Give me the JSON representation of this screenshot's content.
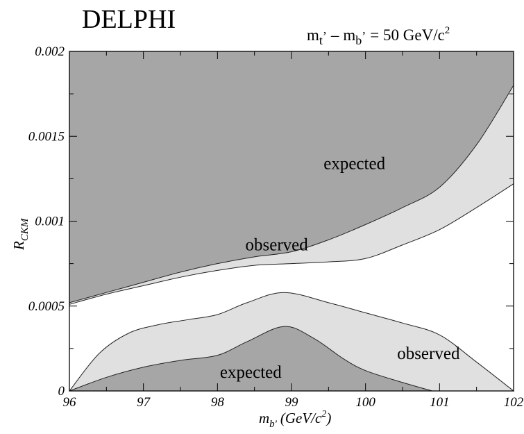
{
  "chart_data": {
    "type": "area",
    "title": "DELPHI",
    "annotation": {
      "m": "m",
      "t": "t",
      "b": "b",
      "prime": "’",
      "minus": "–",
      "rest": "= 50 GeV/c",
      "sup": "2"
    },
    "xlabel": {
      "main": "m",
      "sub": "b'",
      "rest": "(GeV/c",
      "sup": "2",
      "close": ")"
    },
    "ylabel": {
      "main": "R",
      "sub": "CKM"
    },
    "xlim": [
      96,
      102
    ],
    "ylim": [
      0,
      0.002
    ],
    "x_ticks": [
      96,
      97,
      98,
      99,
      100,
      101,
      102
    ],
    "x_tick_labels": [
      "96",
      "97",
      "98",
      "99",
      "100",
      "101",
      "102"
    ],
    "y_ticks": [
      0,
      0.0005,
      0.001,
      0.0015,
      0.002
    ],
    "y_tick_labels": [
      "0",
      "0.0005",
      "0.001",
      "0.0015",
      "0.002"
    ],
    "colors": {
      "expected": "#a6a6a6",
      "observed": "#e0e0e0",
      "allowed": "#ffffff"
    },
    "upper_expected_boundary": {
      "x": [
        96,
        96.5,
        97,
        97.5,
        98,
        98.5,
        99,
        99.5,
        100,
        100.5,
        101,
        101.5,
        102
      ],
      "values": [
        0.00052,
        0.00058,
        0.00064,
        0.0007,
        0.00075,
        0.00079,
        0.00082,
        0.00089,
        0.00098,
        0.00108,
        0.0012,
        0.00145,
        0.0018
      ]
    },
    "upper_observed_boundary": {
      "x": [
        96,
        96.5,
        97,
        97.5,
        98,
        98.5,
        99,
        99.5,
        100,
        100.5,
        101,
        101.5,
        102
      ],
      "values": [
        0.00051,
        0.00057,
        0.00062,
        0.00067,
        0.00071,
        0.00074,
        0.00075,
        0.00076,
        0.00078,
        0.00086,
        0.00095,
        0.00108,
        0.00122
      ]
    },
    "lower_observed_boundary": {
      "x": [
        96,
        96.4,
        96.8,
        97.2,
        97.6,
        98,
        98.4,
        98.9,
        99.5,
        100,
        100.5,
        101,
        101.5,
        102
      ],
      "values": [
        0,
        0.00022,
        0.00034,
        0.00039,
        0.00042,
        0.00045,
        0.00052,
        0.00058,
        0.00052,
        0.00046,
        0.0004,
        0.00033,
        0.00017,
        0
      ]
    },
    "lower_expected_boundary": {
      "x": [
        96,
        96.5,
        97,
        97.5,
        98,
        98.4,
        98.9,
        99.3,
        99.7,
        100,
        100.5,
        100.9
      ],
      "values": [
        0,
        8e-05,
        0.00014,
        0.00018,
        0.00021,
        0.00029,
        0.00038,
        0.00031,
        0.00019,
        0.00012,
        5e-05,
        0
      ]
    },
    "region_labels": [
      {
        "text": "expected",
        "x": 99.85,
        "y": 0.00134
      },
      {
        "text": "observed",
        "x": 98.8,
        "y": 0.00086
      },
      {
        "text": "observed",
        "x": 100.85,
        "y": 0.00022
      },
      {
        "text": "expected",
        "x": 98.45,
        "y": 0.00011
      }
    ]
  }
}
